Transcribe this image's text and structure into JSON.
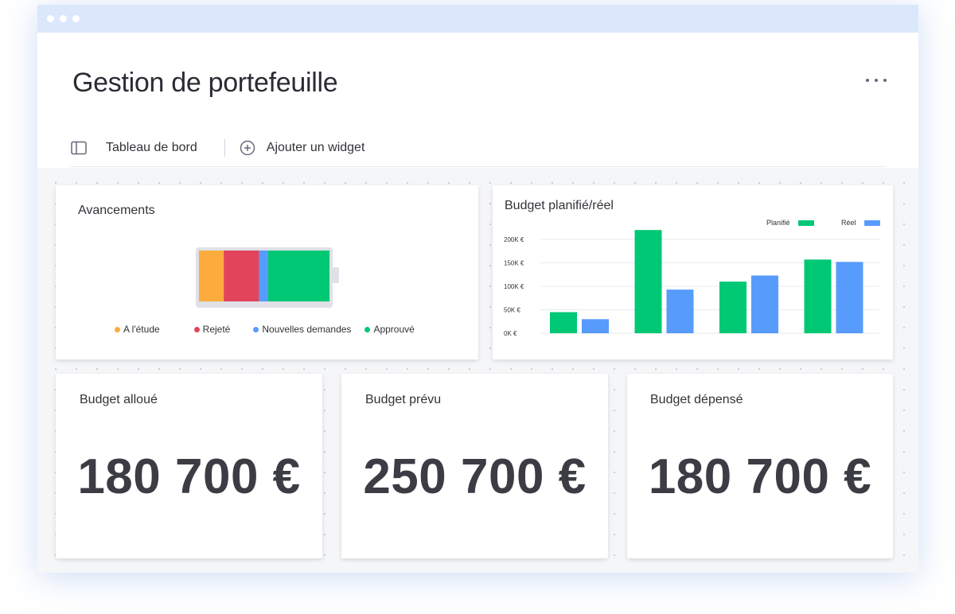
{
  "page": {
    "title": "Gestion de portefeuille",
    "more_icon": "more-horizontal-icon"
  },
  "tabs": [
    {
      "label": "Tableau de bord",
      "icon": "sidebar-panel-icon"
    },
    {
      "label": "Ajouter un widget",
      "icon": "plus-circle-icon"
    }
  ],
  "progress_widget": {
    "title": "Avancements",
    "segments": [
      {
        "label": "A l'étude",
        "color": "#fdab3d",
        "share": 0.19
      },
      {
        "label": "Rejeté",
        "color": "#e2445c",
        "share": 0.27
      },
      {
        "label": "Nouvelles demandes",
        "color": "#579bfc",
        "share": 0.07
      },
      {
        "label": "Approuvé",
        "color": "#00c875",
        "share": 0.47
      }
    ]
  },
  "budget_chart": {
    "title": "Budget planifié/réel",
    "legend": [
      {
        "label": "Planifié",
        "color": "#00c875"
      },
      {
        "label": "Réel",
        "color": "#579bfc"
      }
    ]
  },
  "chart_data": {
    "type": "bar",
    "title": "Budget planifié/réel",
    "categories": [
      "",
      "",
      "",
      ""
    ],
    "series": [
      {
        "name": "Planifié",
        "color": "#00c875",
        "values": [
          45000,
          220000,
          110000,
          157000
        ]
      },
      {
        "name": "Réel",
        "color": "#579bfc",
        "values": [
          30000,
          93000,
          123000,
          152000
        ]
      }
    ],
    "yticks": [
      "0K €",
      "50K €",
      "100K €",
      "150K €",
      "200K €"
    ],
    "ylim": [
      0,
      200000
    ],
    "grid": true,
    "legend_position": "top-right"
  },
  "kpis": [
    {
      "title": "Budget alloué",
      "value": "180 700 €"
    },
    {
      "title": "Budget prévu",
      "value": "250 700 €"
    },
    {
      "title": "Budget dépensé",
      "value": "180 700 €"
    }
  ]
}
